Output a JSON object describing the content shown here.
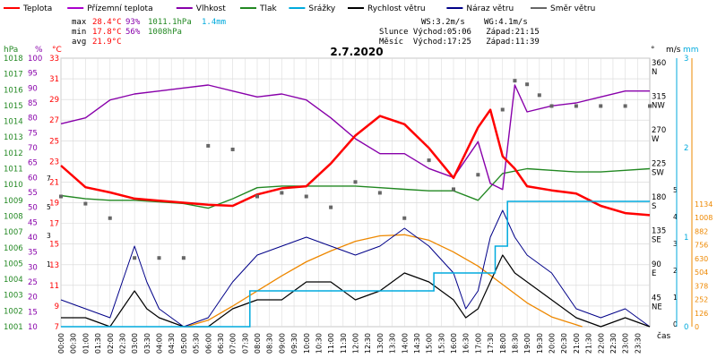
{
  "title": "2.7.2020",
  "legend": [
    {
      "label": "Teplota",
      "color": "#ff0000"
    },
    {
      "label": "Přízemní teplota",
      "color": "#aa00cc"
    },
    {
      "label": "Vlhkost",
      "color": "#8800aa"
    },
    {
      "label": "Tlak",
      "color": "#228822"
    },
    {
      "label": "Srážky",
      "color": "#00aadd"
    },
    {
      "label": "Rychlost větru",
      "color": "#000000"
    },
    {
      "label": "Náraz větru",
      "color": "#000088"
    },
    {
      "label": "Směr větru",
      "color": "#666666"
    }
  ],
  "stats": {
    "max_label": "max",
    "max_temp": "28.4°C",
    "max_hum": "93%",
    "max_press": "1011.1hPa",
    "max_rain": "1.4mm",
    "min_label": "min",
    "min_temp": "17.8°C",
    "min_hum": "56%",
    "min_press": "1008hPa",
    "avg_label": "avg",
    "avg_temp": "21.9°C"
  },
  "wind_info": {
    "ws": "WS:3.2m/s",
    "wg": "WG:4.1m/s"
  },
  "sun_info": "Slunce Východ:05:06   Západ:21:15",
  "moon_info": "Měsíc  Východ:17:25   Západ:11:39",
  "axes": {
    "hpa_label": "hPa",
    "pct_label": "%",
    "c_label": "°C",
    "deg_label": "°",
    "ms_label": "m/s",
    "mm_label": "mm",
    "time_label": "čas",
    "hpa_ticks": [
      "1018",
      "1017",
      "1016",
      "1015",
      "1014",
      "1013",
      "1012",
      "1011",
      "1010",
      "1009",
      "1008",
      "1007",
      "1006",
      "1005",
      "1004",
      "1003",
      "1002",
      "1001"
    ],
    "pct_ticks": [
      "100",
      "95",
      "90",
      "85",
      "80",
      "75",
      "70",
      "65",
      "60",
      "55",
      "50",
      "45",
      "40",
      "35",
      "30",
      "25",
      "20",
      "15",
      "10"
    ],
    "c_ticks": [
      "33",
      "31",
      "29",
      "27",
      "25",
      "23",
      "21",
      "19",
      "17",
      "15",
      "13",
      "11",
      "9",
      "7"
    ],
    "c_ticks_small": [
      "7",
      "5",
      "3",
      "1"
    ],
    "dir_ticks": [
      {
        "deg": "360",
        "dir": "N"
      },
      {
        "deg": "315",
        "dir": "NW"
      },
      {
        "deg": "270",
        "dir": "W"
      },
      {
        "deg": "225",
        "dir": "SW"
      },
      {
        "deg": "180",
        "dir": "S"
      },
      {
        "deg": "135",
        "dir": "SE"
      },
      {
        "deg": "90",
        "dir": "E"
      },
      {
        "deg": "45",
        "dir": "NE"
      }
    ],
    "ms_ticks": [
      "3",
      "2",
      "1",
      "0"
    ],
    "ms_ticks_small": [
      "5",
      "4",
      "3",
      "2",
      "1",
      "0"
    ],
    "mm_ticks": [
      "1134",
      "1008",
      "882",
      "756",
      "630",
      "504",
      "378",
      "252",
      "126",
      "0"
    ],
    "time_ticks": [
      "00:00",
      "00:30",
      "01:00",
      "01:30",
      "02:00",
      "02:30",
      "03:00",
      "03:30",
      "04:00",
      "04:30",
      "05:00",
      "05:30",
      "06:00",
      "06:30",
      "07:00",
      "07:30",
      "08:00",
      "08:30",
      "09:00",
      "09:30",
      "10:00",
      "10:30",
      "11:00",
      "11:30",
      "12:00",
      "12:30",
      "13:00",
      "13:30",
      "14:00",
      "14:30",
      "15:00",
      "15:30",
      "16:00",
      "16:30",
      "17:00",
      "17:30",
      "18:00",
      "18:30",
      "19:00",
      "19:30",
      "20:00",
      "20:30",
      "21:00",
      "21:30",
      "22:00",
      "22:30",
      "23:00",
      "23:30"
    ]
  },
  "colors": {
    "temp": "#ff0000",
    "humidity": "#8800aa",
    "pressure": "#228822",
    "rain": "#00aadd",
    "wind": "#000000",
    "gust": "#000088",
    "direction": "#666666",
    "solar": "#ee8800"
  },
  "chart_data": {
    "type": "line",
    "x_unit": "hours",
    "temperature": {
      "x": [
        0,
        1,
        2,
        3,
        4,
        5,
        6,
        7,
        8,
        9,
        10,
        11,
        12,
        13,
        14,
        15,
        16,
        17,
        17.5,
        18,
        18.5,
        19,
        20,
        21,
        22,
        23,
        24
      ],
      "y": [
        22.6,
        20.5,
        20.0,
        19.4,
        19.2,
        19.0,
        18.8,
        18.7,
        19.8,
        20.4,
        20.6,
        22.8,
        25.5,
        27.4,
        26.6,
        24.3,
        21.4,
        26.3,
        28.0,
        23.5,
        22.3,
        20.6,
        20.2,
        19.9,
        18.7,
        18.0,
        17.8
      ]
    },
    "humidity": {
      "x": [
        0,
        1,
        2,
        3,
        4,
        5,
        6,
        7,
        8,
        9,
        10,
        11,
        12,
        13,
        14,
        15,
        16,
        16.5,
        17,
        17.5,
        18,
        18.5,
        19,
        20,
        21,
        22,
        23,
        24
      ],
      "y": [
        78,
        80,
        86,
        88,
        89,
        90,
        91,
        89,
        87,
        88,
        86,
        80,
        73,
        68,
        68,
        63,
        60,
        66,
        72,
        58,
        56,
        91,
        82,
        84,
        85,
        87,
        89,
        89
      ]
    },
    "pressure": {
      "x": [
        0,
        1,
        2,
        3,
        4,
        5,
        6,
        7,
        8,
        9,
        10,
        11,
        12,
        13,
        14,
        15,
        16,
        17,
        18,
        19,
        20,
        21,
        22,
        23,
        24
      ],
      "y": [
        1009.3,
        1009.1,
        1009.0,
        1009.0,
        1008.9,
        1008.8,
        1008.5,
        1009.1,
        1009.8,
        1009.9,
        1009.9,
        1009.9,
        1009.9,
        1009.8,
        1009.7,
        1009.6,
        1009.6,
        1009.0,
        1010.7,
        1011.0,
        1010.9,
        1010.8,
        1010.8,
        1010.9,
        1011.0
      ]
    },
    "rain_mm": {
      "x": [
        0,
        7.5,
        7.7,
        9.5,
        13,
        15.2,
        16,
        17.5,
        17.7,
        18.2,
        20,
        24
      ],
      "y": [
        0,
        0,
        0.4,
        0.4,
        0.4,
        0.6,
        0.6,
        0.6,
        0.9,
        1.4,
        1.4,
        1.4
      ]
    },
    "wind_speed_ms": {
      "x": [
        0,
        1,
        2,
        2.5,
        3,
        3.5,
        4,
        5,
        6,
        6.5,
        7,
        8,
        9,
        10,
        11,
        12,
        13,
        14,
        15,
        16,
        16.5,
        17,
        17.5,
        18,
        18.5,
        19,
        20,
        20.5,
        21,
        22,
        23,
        24
      ],
      "y": [
        0.1,
        0.1,
        0,
        0.2,
        0.4,
        0.2,
        0.1,
        0,
        0,
        0.1,
        0.2,
        0.3,
        0.3,
        0.5,
        0.5,
        0.3,
        0.4,
        0.6,
        0.5,
        0.3,
        0.1,
        0.2,
        0.5,
        0.8,
        0.6,
        0.5,
        0.3,
        0.2,
        0.1,
        0,
        0.1,
        0
      ]
    },
    "wind_gust_ms": {
      "x": [
        0,
        1,
        2,
        2.5,
        3,
        3.5,
        4,
        5,
        6,
        6.5,
        7,
        8,
        9,
        10,
        11,
        12,
        13,
        14,
        15,
        16,
        16.5,
        17,
        17.5,
        18,
        18.5,
        19,
        20,
        20.5,
        21,
        22,
        23,
        24
      ],
      "y": [
        0.3,
        0.2,
        0.1,
        0.5,
        0.9,
        0.5,
        0.2,
        0,
        0.1,
        0.3,
        0.5,
        0.8,
        0.9,
        1.0,
        0.9,
        0.8,
        0.9,
        1.1,
        0.9,
        0.6,
        0.2,
        0.4,
        1.0,
        1.3,
        1.0,
        0.8,
        0.6,
        0.4,
        0.2,
        0.1,
        0.2,
        0
      ]
    },
    "wind_dir_deg": {
      "x": [
        0,
        1,
        2,
        3,
        4,
        5,
        6,
        7,
        8,
        9,
        10,
        11,
        12,
        13,
        14,
        15,
        16,
        17,
        18,
        18.5,
        19,
        19.5,
        20,
        21,
        22,
        23,
        24
      ],
      "y": [
        180,
        170,
        150,
        95,
        95,
        95,
        250,
        245,
        180,
        185,
        180,
        165,
        200,
        185,
        150,
        230,
        190,
        210,
        300,
        340,
        335,
        320,
        305,
        305,
        305,
        305,
        305
      ]
    },
    "solar_wm2": {
      "x": [
        5.1,
        6,
        7,
        8,
        9,
        10,
        11,
        12,
        13,
        14,
        15,
        16,
        17,
        18,
        19,
        20,
        21.25
      ],
      "y": [
        0,
        60,
        190,
        330,
        470,
        600,
        700,
        790,
        840,
        850,
        800,
        690,
        560,
        390,
        220,
        90,
        0
      ]
    }
  }
}
